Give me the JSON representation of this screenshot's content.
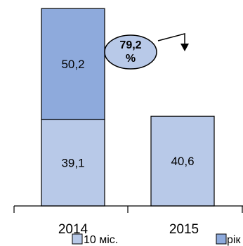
{
  "chart_data": {
    "type": "bar",
    "stacked": true,
    "categories": [
      "2014",
      "2015"
    ],
    "series": [
      {
        "name": "10 міс.",
        "values": [
          39.1,
          40.6
        ],
        "labels": [
          "39,1",
          "40,6"
        ],
        "color": "#b8c9e8"
      },
      {
        "name": "рік",
        "values": [
          50.2,
          null
        ],
        "labels": [
          "50,2",
          ""
        ],
        "color": "#8eaadc"
      }
    ],
    "ylim": [
      0,
      90
    ],
    "grid": false,
    "legend": "bottom",
    "annotation": {
      "text_line1": "79,2",
      "text_line2": "%",
      "from": "2014",
      "to": "2015"
    }
  }
}
